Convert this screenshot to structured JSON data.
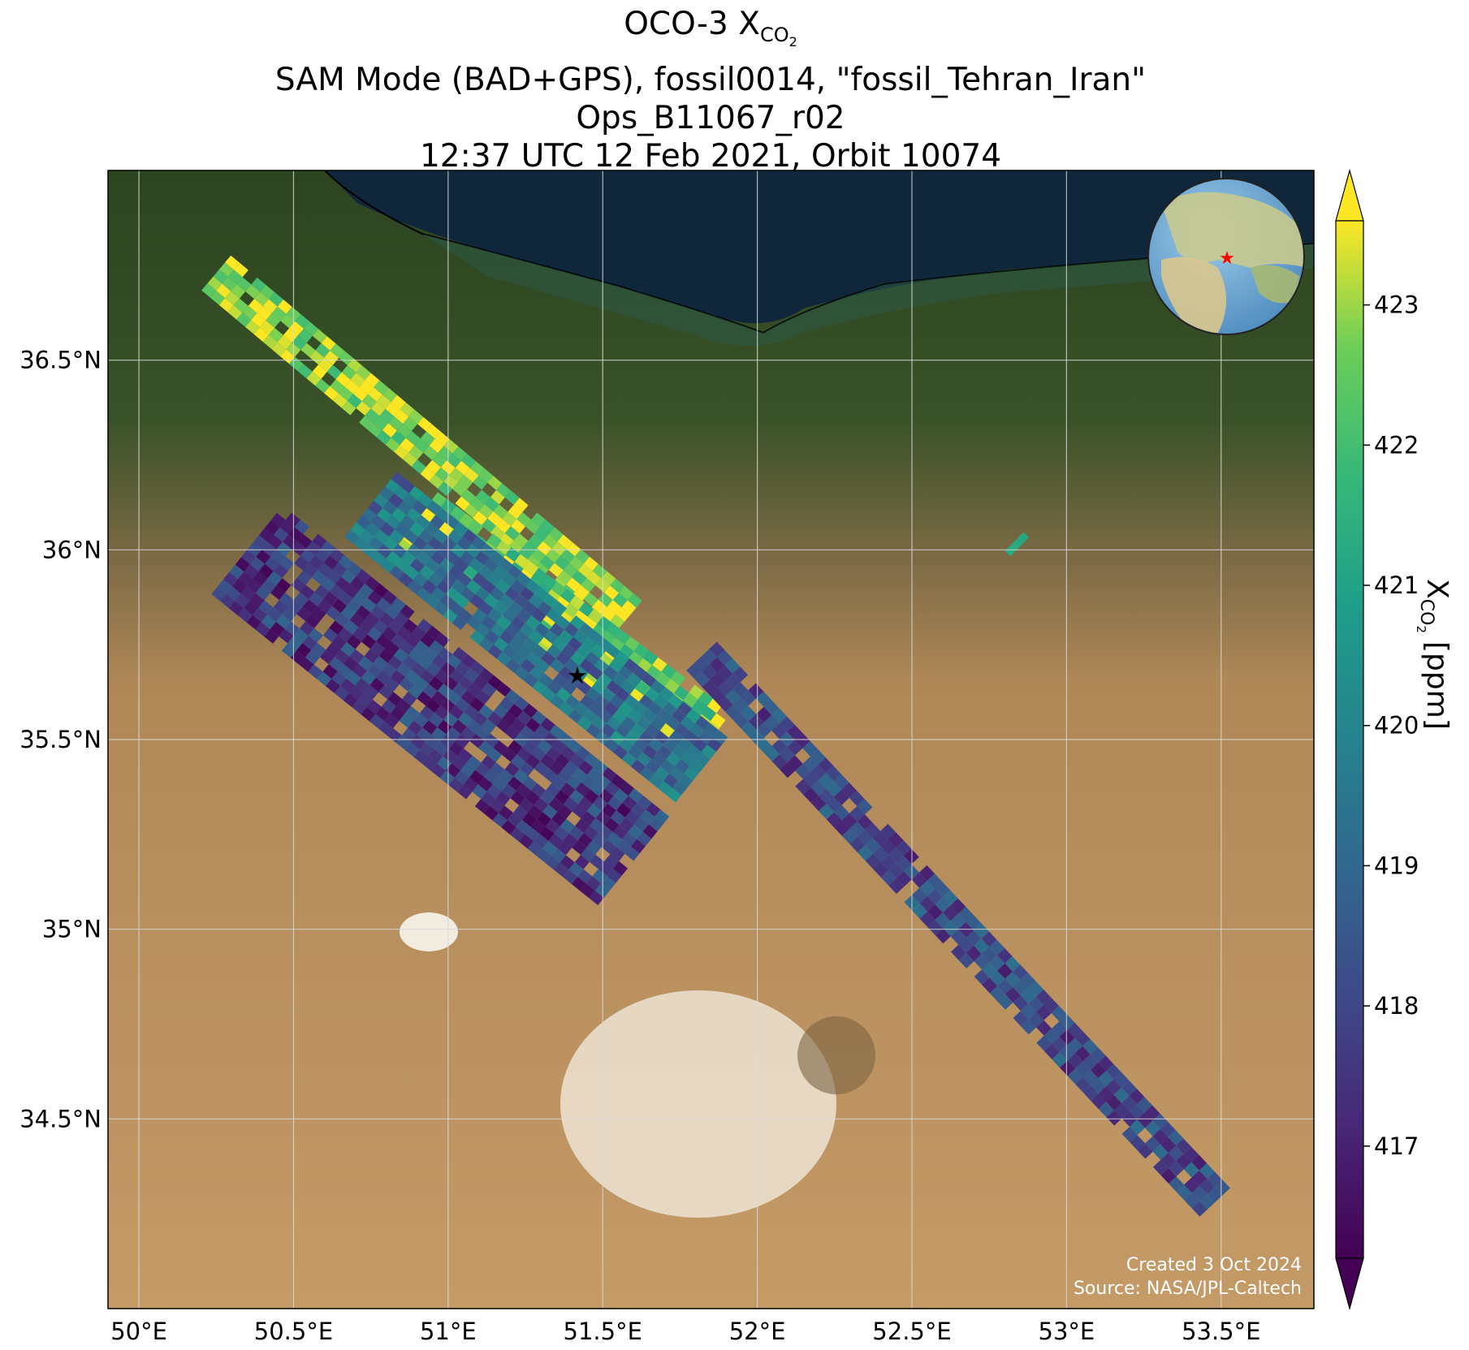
{
  "title": {
    "line1_main": "OCO-3 X",
    "line1_sub": "CO",
    "line1_subsub": "2",
    "line2": "SAM Mode (BAD+GPS), fossil0014, \"fossil_Tehran_Iran\"",
    "line3": "Ops_B11067_r02",
    "line4": "12:37 UTC 12 Feb 2021, Orbit 10074"
  },
  "map": {
    "type": "satellite basemap with XCO2 soundings",
    "lon_range": [
      49.9,
      53.8
    ],
    "lat_range": [
      34.0,
      37.0
    ],
    "lon_ticks": [
      {
        "value": 50.0,
        "label": "50°E"
      },
      {
        "value": 50.5,
        "label": "50.5°E"
      },
      {
        "value": 51.0,
        "label": "51°E"
      },
      {
        "value": 51.5,
        "label": "51.5°E"
      },
      {
        "value": 52.0,
        "label": "52°E"
      },
      {
        "value": 52.5,
        "label": "52.5°E"
      },
      {
        "value": 53.0,
        "label": "53°E"
      },
      {
        "value": 53.5,
        "label": "53.5°E"
      }
    ],
    "lat_ticks": [
      {
        "value": 36.5,
        "label": "36.5°N"
      },
      {
        "value": 36.0,
        "label": "36°N"
      },
      {
        "value": 35.5,
        "label": "35.5°N"
      },
      {
        "value": 35.0,
        "label": "35°N"
      },
      {
        "value": 34.5,
        "label": "34.5°N"
      }
    ],
    "target": {
      "name": "fossil_Tehran_Iran",
      "lon": 51.42,
      "lat": 35.69,
      "marker": "red-star"
    },
    "credit_line1": "Created 3 Oct 2024",
    "credit_line2": "Source: NASA/JPL-Caltech",
    "inset_globe": {
      "marker": "red-star",
      "centered_on": "Iran"
    }
  },
  "chart_data": {
    "type": "heatmap",
    "title": "OCO-3 XCO2",
    "colormap": "viridis",
    "color_range": [
      416.2,
      423.6
    ],
    "colorbar_extend": "both",
    "colorbar_label_main": "X",
    "colorbar_label_sub": "CO",
    "colorbar_label_subsub": "2",
    "colorbar_label_unit": "[ppm]",
    "colorbar_ticks": [
      417,
      418,
      419,
      420,
      421,
      422,
      423
    ],
    "swaths": [
      {
        "name": "swath-north",
        "start": [
          50.25,
          36.73
        ],
        "end": [
          51.58,
          35.82
        ],
        "width_lat": 0.12,
        "mean": 423.0,
        "spread": 1.2
      },
      {
        "name": "swath-yellow-core",
        "start": [
          50.9,
          36.08
        ],
        "end": [
          51.85,
          35.5
        ],
        "width_lat": 0.18,
        "mean": 422.6,
        "spread": 1.4
      },
      {
        "name": "swath-main-west",
        "start": [
          50.35,
          36.0
        ],
        "end": [
          51.6,
          35.18
        ],
        "width_lat": 0.3,
        "mean": 417.6,
        "spread": 1.3
      },
      {
        "name": "swath-main-mid",
        "start": [
          50.75,
          36.12
        ],
        "end": [
          51.82,
          35.42
        ],
        "width_lat": 0.22,
        "mean": 419.3,
        "spread": 1.4
      },
      {
        "name": "swath-southeast",
        "start": [
          51.82,
          35.72
        ],
        "end": [
          53.48,
          34.28
        ],
        "width_lat": 0.11,
        "mean": 418.0,
        "spread": 1.2
      },
      {
        "name": "swath-isolated",
        "start": [
          52.81,
          35.99
        ],
        "end": [
          52.87,
          36.04
        ],
        "width_lat": 0.02,
        "mean": 421.8,
        "spread": 1.0
      }
    ]
  },
  "colors": {
    "sea": "#10263a",
    "forest": "#2f4a24",
    "desert": "#b8915e",
    "salt_flat": "#e9dfcf",
    "target_star": "#ff0000",
    "gridline": "#d9d9d9"
  }
}
